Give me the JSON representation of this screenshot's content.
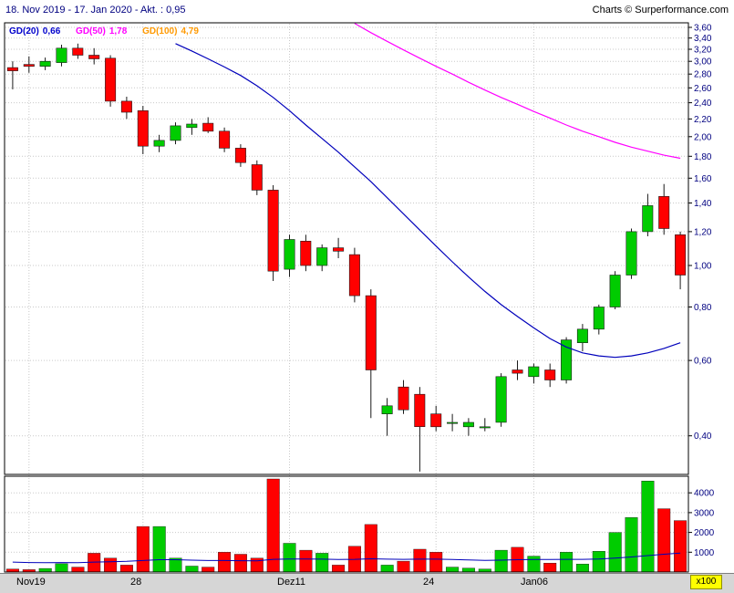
{
  "header": {
    "title": "18. Nov 2019 - 17. Jan 2020 - Akt. : 0,95",
    "credit": "Charts © Surperformance.com"
  },
  "legend": [
    {
      "label": "GD(20)",
      "value": "0,66",
      "color": "#0000cc"
    },
    {
      "label": "GD(50)",
      "value": "1,78",
      "color": "#ff00ff"
    },
    {
      "label": "GD(100)",
      "value": "4,79",
      "color": "#ff9900"
    }
  ],
  "axis": {
    "price_ticks": [
      {
        "value": 3.6,
        "label": "3,60"
      },
      {
        "value": 3.4,
        "label": "3,40"
      },
      {
        "value": 3.2,
        "label": "3,20"
      },
      {
        "value": 3.0,
        "label": "3,00"
      },
      {
        "value": 2.8,
        "label": "2,80"
      },
      {
        "value": 2.6,
        "label": "2,60"
      },
      {
        "value": 2.4,
        "label": "2,40"
      },
      {
        "value": 2.2,
        "label": "2,20"
      },
      {
        "value": 2.0,
        "label": "2,00"
      },
      {
        "value": 1.8,
        "label": "1,80"
      },
      {
        "value": 1.6,
        "label": "1,60"
      },
      {
        "value": 1.4,
        "label": "1,40"
      },
      {
        "value": 1.2,
        "label": "1,20"
      },
      {
        "value": 1.0,
        "label": "1,00"
      },
      {
        "value": 0.8,
        "label": "0,80"
      },
      {
        "value": 0.6,
        "label": "0,60"
      },
      {
        "value": 0.4,
        "label": "0,40"
      }
    ],
    "volume_ticks": [
      {
        "value": 4000,
        "label": "4000"
      },
      {
        "value": 3000,
        "label": "3000"
      },
      {
        "value": 2000,
        "label": "2000"
      },
      {
        "value": 1000,
        "label": "1000"
      }
    ],
    "volume_unit": "x100",
    "x_ticks": [
      {
        "index": 1,
        "label": "Nov19"
      },
      {
        "index": 8,
        "label": "28"
      },
      {
        "index": 17,
        "label": "Dez11"
      },
      {
        "index": 26,
        "label": "24"
      },
      {
        "index": 32,
        "label": "Jan06"
      }
    ]
  },
  "chart_data": {
    "type": "candlestick+volume",
    "title": "18. Nov 2019 - 17. Jan 2020 - Akt. : 0,95",
    "y_scale": "log",
    "ylim": [
      0.325,
      3.69
    ],
    "last_price": 0.95,
    "candle_fields": [
      "date",
      "open",
      "high",
      "low",
      "close",
      "volume_x100"
    ],
    "candles": [
      [
        "18.11",
        2.9,
        3.0,
        2.58,
        2.85,
        150
      ],
      [
        "19.11",
        2.95,
        3.08,
        2.82,
        2.92,
        120
      ],
      [
        "20.11",
        2.92,
        3.06,
        2.86,
        3.0,
        180
      ],
      [
        "21.11",
        2.98,
        3.28,
        2.92,
        3.22,
        420
      ],
      [
        "22.11",
        3.22,
        3.3,
        3.04,
        3.1,
        250
      ],
      [
        "25.11",
        3.1,
        3.22,
        2.95,
        3.04,
        950
      ],
      [
        "26.11",
        3.05,
        3.1,
        2.35,
        2.42,
        700
      ],
      [
        "27.11",
        2.42,
        2.48,
        2.2,
        2.28,
        350
      ],
      [
        "28.11",
        2.3,
        2.36,
        1.82,
        1.9,
        2300
      ],
      [
        "29.11",
        1.9,
        2.02,
        1.84,
        1.96,
        2300
      ],
      [
        "02.12",
        1.96,
        2.16,
        1.92,
        2.12,
        700
      ],
      [
        "03.12",
        2.1,
        2.2,
        2.02,
        2.14,
        300
      ],
      [
        "04.12",
        2.15,
        2.22,
        2.04,
        2.06,
        250
      ],
      [
        "05.12",
        2.06,
        2.1,
        1.84,
        1.88,
        1000
      ],
      [
        "06.12",
        1.88,
        1.92,
        1.7,
        1.74,
        900
      ],
      [
        "09.12",
        1.72,
        1.76,
        1.46,
        1.5,
        700
      ],
      [
        "10.12",
        1.5,
        1.54,
        0.92,
        0.97,
        4700
      ],
      [
        "11.12",
        0.98,
        1.18,
        0.94,
        1.15,
        1450
      ],
      [
        "12.12",
        1.14,
        1.18,
        0.97,
        1.0,
        1100
      ],
      [
        "13.12",
        1.0,
        1.12,
        0.97,
        1.1,
        950
      ],
      [
        "16.12",
        1.1,
        1.16,
        1.04,
        1.08,
        350
      ],
      [
        "17.12",
        1.06,
        1.1,
        0.82,
        0.85,
        1300
      ],
      [
        "18.12",
        0.85,
        0.88,
        0.44,
        0.57,
        2400
      ],
      [
        "19.12",
        0.45,
        0.49,
        0.4,
        0.47,
        350
      ],
      [
        "20.12",
        0.52,
        0.54,
        0.45,
        0.46,
        550
      ],
      [
        "23.12",
        0.5,
        0.52,
        0.33,
        0.42,
        1150
      ],
      [
        "24.12",
        0.45,
        0.47,
        0.41,
        0.42,
        1000
      ],
      [
        "27.12",
        0.43,
        0.45,
        0.41,
        0.43,
        250
      ],
      [
        "30.12",
        0.42,
        0.44,
        0.4,
        0.43,
        200
      ],
      [
        "31.12",
        0.42,
        0.44,
        0.41,
        0.42,
        150
      ],
      [
        "02.01",
        0.43,
        0.56,
        0.42,
        0.55,
        1100
      ],
      [
        "03.01",
        0.57,
        0.6,
        0.54,
        0.56,
        1250
      ],
      [
        "06.01",
        0.55,
        0.59,
        0.53,
        0.58,
        800
      ],
      [
        "07.01",
        0.57,
        0.59,
        0.52,
        0.54,
        450
      ],
      [
        "08.01",
        0.54,
        0.68,
        0.53,
        0.67,
        1000
      ],
      [
        "09.01",
        0.66,
        0.73,
        0.63,
        0.71,
        400
      ],
      [
        "10.01",
        0.71,
        0.81,
        0.69,
        0.8,
        1050
      ],
      [
        "13.01",
        0.8,
        0.97,
        0.79,
        0.95,
        2000
      ],
      [
        "14.01",
        0.95,
        1.22,
        0.93,
        1.2,
        2750
      ],
      [
        "15.01",
        1.2,
        1.47,
        1.17,
        1.38,
        4600
      ],
      [
        "16.01",
        1.45,
        1.55,
        1.18,
        1.22,
        3200
      ],
      [
        "17.01",
        1.18,
        1.2,
        0.88,
        0.95,
        2600
      ]
    ],
    "moving_averages": [
      {
        "name": "gd20",
        "color": "#0000bb",
        "start_index": 10,
        "values": [
          3.3,
          3.17,
          3.04,
          2.91,
          2.78,
          2.63,
          2.47,
          2.3,
          2.13,
          1.98,
          1.84,
          1.7,
          1.57,
          1.44,
          1.32,
          1.21,
          1.11,
          1.02,
          0.94,
          0.87,
          0.81,
          0.76,
          0.715,
          0.675,
          0.645,
          0.625,
          0.615,
          0.61,
          0.615,
          0.625,
          0.64,
          0.66
        ]
      },
      {
        "name": "gd50",
        "color": "#ff00ff",
        "start_index": 21,
        "values": [
          3.68,
          3.5,
          3.34,
          3.19,
          3.05,
          2.92,
          2.8,
          2.68,
          2.57,
          2.47,
          2.38,
          2.29,
          2.21,
          2.13,
          2.06,
          2.0,
          1.94,
          1.89,
          1.85,
          1.81,
          1.78
        ]
      }
    ],
    "volume_ma": {
      "color": "#0000bb",
      "values": [
        500,
        480,
        470,
        480,
        470,
        500,
        520,
        540,
        580,
        620,
        620,
        600,
        580,
        580,
        570,
        560,
        640,
        660,
        660,
        650,
        630,
        640,
        670,
        650,
        640,
        650,
        650,
        630,
        610,
        590,
        600,
        620,
        630,
        630,
        640,
        640,
        660,
        700,
        760,
        830,
        900,
        960
      ]
    }
  },
  "colors": {
    "up": "#00cc00",
    "down": "#ff0000",
    "wick": "#1a1a1a",
    "grid": "#c9c9c9",
    "axis_label": "#000080",
    "border": "#000000"
  }
}
